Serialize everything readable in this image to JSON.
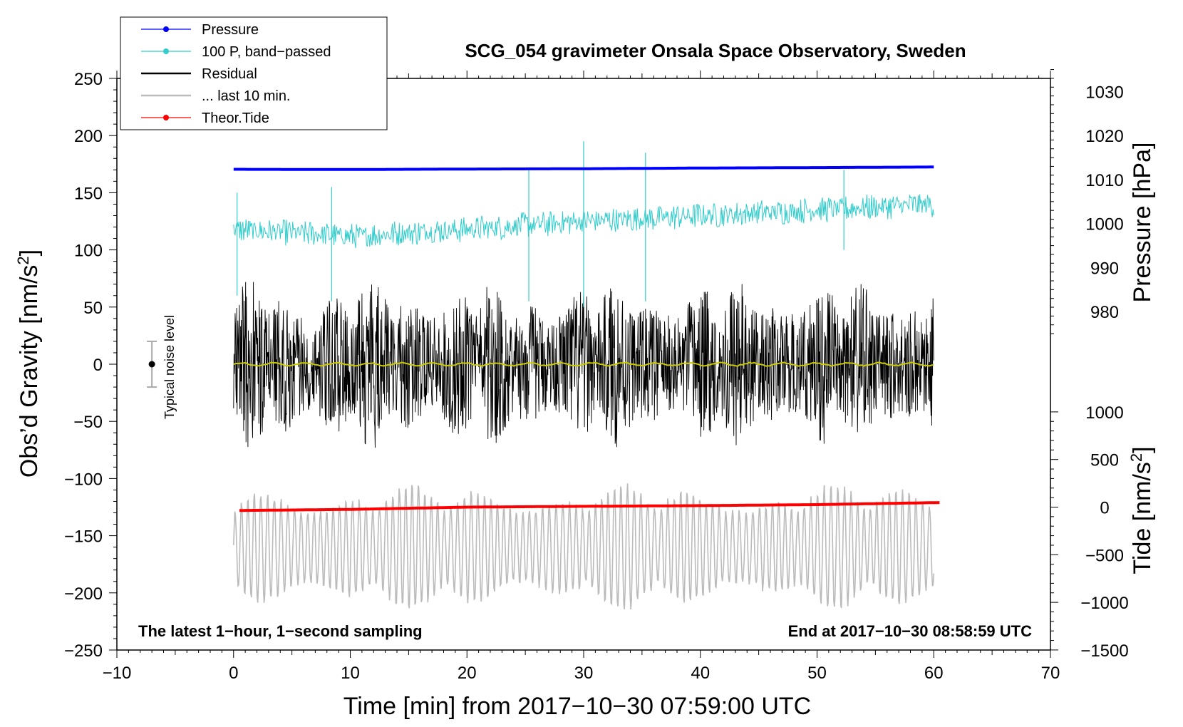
{
  "chart_data": {
    "type": "line",
    "title": "SCG_054 gravimeter Onsala Space Observatory, Sweden",
    "xlabel": "Time [min] from 2017−10−30 07:59:00 UTC",
    "ylabel_main": "Obs’d Gravity [nm/s",
    "ylabel_main_sup": "2",
    "ylabel_main_end": "]",
    "ylabel_pressure": "Pressure [hPa]",
    "ylabel_tide": "Tide [nm/s",
    "ylabel_tide_sup": "2",
    "ylabel_tide_end": "]",
    "xlim": [
      -10,
      70
    ],
    "ylim": [
      -250,
      250
    ],
    "x_ticks": [
      -10,
      0,
      10,
      20,
      30,
      40,
      50,
      60,
      70
    ],
    "x_tick_labels": [
      "−10",
      "0",
      "10",
      "20",
      "30",
      "40",
      "50",
      "60",
      "70"
    ],
    "y_ticks": [
      250,
      200,
      150,
      100,
      50,
      0,
      -50,
      -100,
      -150,
      -200,
      -250
    ],
    "y_tick_labels": [
      "250",
      "200",
      "150",
      "100",
      "50",
      "0",
      "−50",
      "−100",
      "−150",
      "−200",
      "−250"
    ],
    "pressure_axis": {
      "ticks": [
        1030,
        1020,
        1010,
        1000,
        990,
        980
      ],
      "tick_labels": [
        "1030",
        "1020",
        "1010",
        "1000",
        "990",
        "980"
      ],
      "ref_pressure_hpa": 1020,
      "ref_gravity": 200,
      "gravity_per_hpa": 3.85
    },
    "tide_axis": {
      "ticks": [
        1000,
        500,
        0,
        -500,
        -1000,
        -1500
      ],
      "tick_labels": [
        "1000",
        "500",
        "0",
        "−500",
        "−1000",
        "−1500"
      ],
      "gravity_per_unit": 0.0833,
      "zero_gravity": -125
    },
    "legend": [
      {
        "label": "Pressure",
        "color": "#0000ff",
        "marker": true
      },
      {
        "label": "100 P, band−passed",
        "color": "#33cccc",
        "marker": true
      },
      {
        "label": "Residual",
        "color": "#000000",
        "marker": false
      },
      {
        "label": "... last 10 min.",
        "color": "#bbbbbb",
        "marker": false
      },
      {
        "label": "Theor.Tide",
        "color": "#ff0000",
        "marker": true
      }
    ],
    "series": [
      {
        "name": "Pressure",
        "color": "#0000ff",
        "x": [
          0,
          10,
          20,
          30,
          40,
          50,
          60
        ],
        "values": [
          170.5,
          170.3,
          170.7,
          171.0,
          171.6,
          172.0,
          172.5
        ]
      },
      {
        "name": "100 P, band-passed",
        "color": "#33cccc",
        "x": [
          0,
          10,
          20,
          30,
          40,
          50,
          60
        ],
        "values": [
          118,
          112,
          118,
          125,
          130,
          135,
          140
        ],
        "amplitude": 12,
        "spikes": [
          {
            "x": 0.3,
            "lo": 60,
            "hi": 150
          },
          {
            "x": 8.4,
            "lo": 55,
            "hi": 155
          },
          {
            "x": 25.3,
            "lo": 55,
            "hi": 170
          },
          {
            "x": 30,
            "lo": 50,
            "hi": 195
          },
          {
            "x": 35.3,
            "lo": 55,
            "hi": 185
          },
          {
            "x": 52.3,
            "lo": 100,
            "hi": 170
          }
        ]
      },
      {
        "name": "Residual",
        "color": "#000000",
        "x": [
          0,
          60
        ],
        "values": [
          0,
          0
        ],
        "amplitude": 75
      },
      {
        "name": "Residual (smoothed)",
        "color": "#cccc00",
        "x": [
          0,
          60
        ],
        "values": [
          0,
          0
        ]
      },
      {
        "name": "... last 10 min.",
        "color": "#bbbbbb",
        "x": [
          0,
          60
        ],
        "values": [
          -160,
          -160
        ],
        "amplitude": 55
      },
      {
        "name": "Theor.Tide",
        "color": "#ff0000",
        "x": [
          0,
          10,
          20,
          30,
          40,
          50,
          60.5
        ],
        "values": [
          -128,
          -127,
          -125,
          -124.3,
          -123.7,
          -122.8,
          -121
        ]
      }
    ],
    "noise_level": {
      "x": -7,
      "center": 0,
      "lo": -20,
      "hi": 20,
      "label": "Typical noise level"
    },
    "annotation_left": "The latest 1−hour, 1−second sampling",
    "annotation_right": "End at 2017−10−30 08:58:59 UTC"
  }
}
